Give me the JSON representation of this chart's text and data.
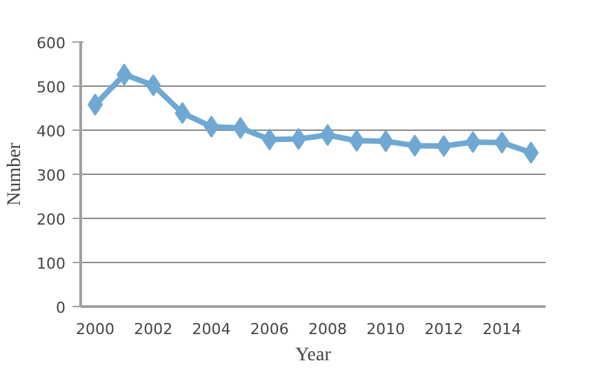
{
  "chart_data": {
    "type": "line",
    "xlabel": "Year",
    "ylabel": "Number",
    "categories": [
      "2000",
      null,
      "2002",
      null,
      "2004",
      null,
      "2006",
      null,
      "2008",
      null,
      "2010",
      null,
      "2012",
      null,
      "2014",
      null
    ],
    "series": [
      {
        "color": "#6fa8d2",
        "values": [
          458,
          526,
          502,
          439,
          408,
          405,
          379,
          380,
          389,
          376,
          375,
          365,
          364,
          373,
          372,
          349
        ]
      }
    ],
    "ylim": [
      0,
      600
    ],
    "yticks": [
      0,
      100,
      200,
      300,
      400,
      500,
      600
    ],
    "grid": "y",
    "marker": "diamond"
  }
}
